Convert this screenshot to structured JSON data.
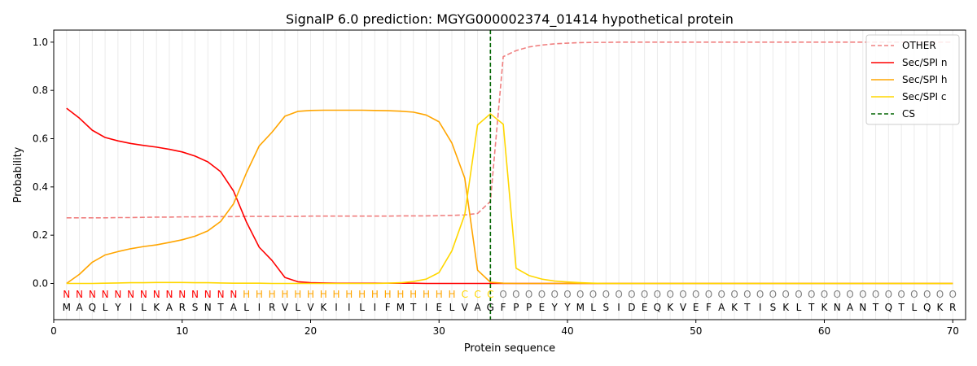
{
  "chart_data": {
    "type": "line",
    "title": "SignalP 6.0 prediction: MGYG000002374_01414 hypothetical protein",
    "xlabel": "Protein sequence",
    "ylabel": "Probability",
    "xlim": [
      0,
      71
    ],
    "ylim": [
      -0.15,
      1.05
    ],
    "xticks": [
      0,
      10,
      20,
      30,
      40,
      50,
      60,
      70
    ],
    "yticks": [
      0.0,
      0.2,
      0.4,
      0.6,
      0.8,
      1.0
    ],
    "ytick_labels": [
      "0.0",
      "0.2",
      "0.4",
      "0.6",
      "0.8",
      "1.0"
    ],
    "grid": "vertical lines at each residue",
    "legend_position": "top-right",
    "sequence": [
      "M",
      "A",
      "Q",
      "L",
      "Y",
      "I",
      "L",
      "K",
      "A",
      "R",
      "S",
      "N",
      "T",
      "A",
      "L",
      "I",
      "R",
      "V",
      "L",
      "V",
      "K",
      "I",
      "I",
      "L",
      "I",
      "F",
      "M",
      "T",
      "I",
      "E",
      "L",
      "V",
      "A",
      "G",
      "F",
      "P",
      "P",
      "E",
      "Y",
      "Y",
      "M",
      "L",
      "S",
      "I",
      "D",
      "E",
      "Q",
      "K",
      "V",
      "E",
      "F",
      "A",
      "K",
      "T",
      "I",
      "S",
      "K",
      "L",
      "T",
      "K",
      "N",
      "A",
      "N",
      "T",
      "Q",
      "T",
      "L",
      "Q",
      "K",
      "R"
    ],
    "labels": [
      "N",
      "N",
      "N",
      "N",
      "N",
      "N",
      "N",
      "N",
      "N",
      "N",
      "N",
      "N",
      "N",
      "N",
      "H",
      "H",
      "H",
      "H",
      "H",
      "H",
      "H",
      "H",
      "H",
      "H",
      "H",
      "H",
      "H",
      "H",
      "H",
      "H",
      "H",
      "C",
      "C",
      "C",
      "O",
      "O",
      "O",
      "O",
      "O",
      "O",
      "O",
      "O",
      "O",
      "O",
      "O",
      "O",
      "O",
      "O",
      "O",
      "O",
      "O",
      "O",
      "O",
      "O",
      "O",
      "O",
      "O",
      "O",
      "O",
      "O",
      "O",
      "O",
      "O",
      "O",
      "O",
      "O",
      "O",
      "O",
      "O",
      "O"
    ],
    "label_colors": {
      "N": "#ff0000",
      "H": "#ffa500",
      "C": "#ffd700",
      "O": "#808080"
    },
    "cleavage_site": 34,
    "series": [
      {
        "name": "OTHER",
        "color": "#f08080",
        "dash": true,
        "values": [
          0.272,
          0.272,
          0.272,
          0.272,
          0.273,
          0.273,
          0.274,
          0.275,
          0.275,
          0.276,
          0.276,
          0.277,
          0.277,
          0.277,
          0.278,
          0.278,
          0.278,
          0.278,
          0.278,
          0.279,
          0.279,
          0.279,
          0.279,
          0.279,
          0.279,
          0.279,
          0.28,
          0.28,
          0.28,
          0.281,
          0.282,
          0.284,
          0.29,
          0.34,
          0.94,
          0.965,
          0.98,
          0.988,
          0.993,
          0.996,
          0.998,
          0.999,
          0.999,
          1.0,
          1.0,
          1.0,
          1.0,
          1.0,
          1.0,
          1.0,
          1.0,
          1.0,
          1.0,
          1.0,
          1.0,
          1.0,
          1.0,
          1.0,
          1.0,
          1.0,
          1.0,
          1.0,
          1.0,
          1.0,
          1.0,
          1.0,
          1.0,
          1.0,
          1.0,
          1.0
        ]
      },
      {
        "name": "Sec/SPI n",
        "color": "#ff0000",
        "dash": false,
        "values": [
          0.726,
          0.685,
          0.635,
          0.605,
          0.591,
          0.58,
          0.572,
          0.565,
          0.556,
          0.545,
          0.528,
          0.504,
          0.463,
          0.383,
          0.255,
          0.15,
          0.095,
          0.025,
          0.007,
          0.003,
          0.002,
          0.001,
          0.001,
          0.001,
          0.001,
          0.001,
          0.001,
          0.001,
          0.0,
          0.0,
          0.0,
          0.0,
          0.0,
          0.0,
          0.0,
          0.0,
          0.0,
          0.0,
          0.0,
          0.0,
          0.0,
          0.0,
          0.0,
          0.0,
          0.0,
          0.0,
          0.0,
          0.0,
          0.0,
          0.0,
          0.0,
          0.0,
          0.0,
          0.0,
          0.0,
          0.0,
          0.0,
          0.0,
          0.0,
          0.0,
          0.0,
          0.0,
          0.0,
          0.0,
          0.0,
          0.0,
          0.0,
          0.0,
          0.0,
          0.0
        ]
      },
      {
        "name": "Sec/SPI h",
        "color": "#ffa500",
        "dash": false,
        "values": [
          0.0,
          0.038,
          0.088,
          0.118,
          0.132,
          0.144,
          0.153,
          0.16,
          0.17,
          0.181,
          0.196,
          0.218,
          0.257,
          0.33,
          0.458,
          0.57,
          0.627,
          0.693,
          0.713,
          0.717,
          0.718,
          0.718,
          0.718,
          0.718,
          0.717,
          0.716,
          0.714,
          0.71,
          0.698,
          0.67,
          0.582,
          0.437,
          0.055,
          0.005,
          0.001,
          0.0,
          0.0,
          0.0,
          0.0,
          0.0,
          0.0,
          0.0,
          0.0,
          0.0,
          0.0,
          0.0,
          0.0,
          0.0,
          0.0,
          0.0,
          0.0,
          0.0,
          0.0,
          0.0,
          0.0,
          0.0,
          0.0,
          0.0,
          0.0,
          0.0,
          0.0,
          0.0,
          0.0,
          0.0,
          0.0,
          0.0,
          0.0,
          0.0,
          0.0,
          0.0
        ]
      },
      {
        "name": "Sec/SPI c",
        "color": "#ffd700",
        "dash": false,
        "values": [
          0.0,
          0.0,
          0.0,
          0.001,
          0.002,
          0.003,
          0.003,
          0.004,
          0.004,
          0.004,
          0.003,
          0.003,
          0.002,
          0.001,
          0.001,
          0.001,
          0.0,
          0.0,
          0.0,
          0.0,
          0.0,
          0.0,
          0.0,
          0.0,
          0.0,
          0.001,
          0.003,
          0.008,
          0.018,
          0.045,
          0.135,
          0.285,
          0.657,
          0.703,
          0.66,
          0.063,
          0.033,
          0.018,
          0.01,
          0.006,
          0.003,
          0.001,
          0.0,
          0.0,
          0.0,
          0.0,
          0.0,
          0.0,
          0.0,
          0.0,
          0.0,
          0.0,
          0.0,
          0.0,
          0.0,
          0.0,
          0.0,
          0.0,
          0.0,
          0.0,
          0.0,
          0.0,
          0.0,
          0.0,
          0.0,
          0.0,
          0.0,
          0.0,
          0.0,
          0.0
        ]
      }
    ],
    "legend": [
      "OTHER",
      "Sec/SPI n",
      "Sec/SPI h",
      "Sec/SPI c",
      "CS"
    ],
    "cs_color": "#006400"
  }
}
